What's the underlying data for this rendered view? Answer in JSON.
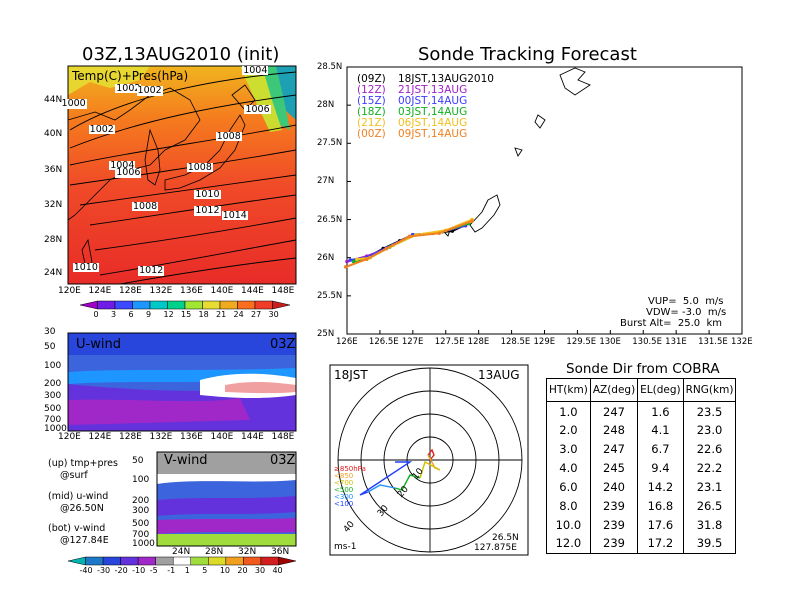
{
  "left_panel": {
    "title": "03Z,13AUG2010 (init)",
    "map_label": "Temp(C)+Pres(hPa)",
    "lat_labels": [
      "44N",
      "40N",
      "36N",
      "32N",
      "28N",
      "24N"
    ],
    "lon_labels": [
      "120E",
      "124E",
      "128E",
      "132E",
      "136E",
      "140E",
      "144E",
      "148E"
    ],
    "isobar_labels": [
      {
        "text": "1004",
        "lon": 144.5,
        "lat": 45.5
      },
      {
        "text": "1002",
        "lon": 127.8,
        "lat": 43.5
      },
      {
        "text": "1002",
        "lon": 130.6,
        "lat": 43.2
      },
      {
        "text": "1000",
        "lon": 120.6,
        "lat": 41.8
      },
      {
        "text": "1006",
        "lon": 144.8,
        "lat": 41.2
      },
      {
        "text": "1002",
        "lon": 124.3,
        "lat": 39.0
      },
      {
        "text": "1008",
        "lon": 141.0,
        "lat": 38.2
      },
      {
        "text": "1004",
        "lon": 127.0,
        "lat": 35.0
      },
      {
        "text": "1006",
        "lon": 127.8,
        "lat": 34.2
      },
      {
        "text": "1008",
        "lon": 137.2,
        "lat": 34.8
      },
      {
        "text": "1010",
        "lon": 138.2,
        "lat": 31.8
      },
      {
        "text": "1008",
        "lon": 130.0,
        "lat": 30.5
      },
      {
        "text": "1012",
        "lon": 138.2,
        "lat": 30.0
      },
      {
        "text": "1014",
        "lon": 141.8,
        "lat": 29.5
      },
      {
        "text": "1010",
        "lon": 122.2,
        "lat": 23.8
      },
      {
        "text": "1012",
        "lon": 130.8,
        "lat": 23.4
      }
    ],
    "temp_colorbar": {
      "labels": [
        "0",
        "3",
        "6",
        "9",
        "12",
        "15",
        "18",
        "21",
        "24",
        "27",
        "30"
      ],
      "colors": [
        "#a000c8",
        "#6e1ee6",
        "#3c4bff",
        "#1e96ff",
        "#00c8c8",
        "#00d28c",
        "#a0e632",
        "#e6dc32",
        "#f0aa1e",
        "#fa6e1e",
        "#f03c28",
        "#c81e1e"
      ]
    },
    "u_wind": {
      "label": "U-wind",
      "time": "03Z",
      "y_labels": [
        "30",
        "50",
        "100",
        "200",
        "300",
        "500",
        "700",
        "1000"
      ],
      "x_labels": [
        "120E",
        "124E",
        "128E",
        "132E",
        "136E",
        "140E",
        "144E",
        "148E"
      ]
    },
    "v_wind": {
      "label": "V-wind",
      "time": "03Z",
      "y_labels": [
        "50",
        "100",
        "200",
        "300",
        "500",
        "700",
        "1000"
      ],
      "x_labels": [
        "24N",
        "28N",
        "32N",
        "36N"
      ]
    },
    "legend_notes": [
      "(up) tmp+pres",
      "@surf",
      "(mid) u-wind",
      "@26.50N",
      "(bot) v-wind",
      "@127.84E"
    ],
    "wind_colorbar": {
      "labels": [
        "-40",
        "-30",
        "-20",
        "-10",
        "-5",
        "-1",
        "1",
        "5",
        "10",
        "20",
        "30",
        "40"
      ],
      "colors": [
        "#00b4b4",
        "#1e78c8",
        "#2846dc",
        "#6432dc",
        "#a028c8",
        "#a0a0a0",
        "#ffffff",
        "#a0dc3c",
        "#dcdc28",
        "#f0a01e",
        "#f05a1e",
        "#d21e1e",
        "#a00000"
      ]
    }
  },
  "tracking": {
    "title": "Sonde Tracking Forecast",
    "x_labels": [
      "126E",
      "126.5E",
      "127E",
      "127.5E",
      "128E",
      "128.5E",
      "129E",
      "129.5E",
      "130E",
      "130.5E",
      "131E",
      "131.5E",
      "132E"
    ],
    "y_labels": [
      "28.5N",
      "28N",
      "27.5N",
      "27N",
      "26.5N",
      "26N",
      "25.5N",
      "25N"
    ],
    "legend": [
      {
        "code": "(09Z)",
        "time": "18JST,13AUG2010",
        "color": "#000000"
      },
      {
        "code": "(12Z)",
        "time": "21JST,13AUG",
        "color": "#a020c8"
      },
      {
        "code": "(15Z)",
        "time": "00JST,14AUG",
        "color": "#3c3cff"
      },
      {
        "code": "(18Z)",
        "time": "03JST,14AUG",
        "color": "#10b020"
      },
      {
        "code": "(21Z)",
        "time": "06JST,14AUG",
        "color": "#f0c020"
      },
      {
        "code": "(00Z)",
        "time": "09JST,14AUG",
        "color": "#f08020"
      }
    ],
    "params": [
      "VUP=  5.0  m/s",
      "VDW= -3.0  m/s",
      "Burst Alt=  25.0  km"
    ]
  },
  "polar": {
    "time_left": "18JST",
    "date_right": "13AUG",
    "ring_labels": [
      "10",
      "20",
      "30",
      "40"
    ],
    "level_legend": [
      "≥850hPa",
      "<850",
      "<700",
      "<500",
      "<300",
      "<100"
    ],
    "level_colors": [
      "#e02020",
      "#f0a020",
      "#d0c000",
      "#10b020",
      "#1e90ff",
      "#2040ff"
    ],
    "unit": "ms-1",
    "loc_lat": "26.5N",
    "loc_lon": "127.875E"
  },
  "sonde_table": {
    "title": "Sonde Dir from COBRA",
    "headers": [
      "HT(km)",
      "AZ(deg)",
      "EL(deg)",
      "RNG(km)"
    ],
    "rows": [
      [
        "1.0",
        "247",
        "1.6",
        "23.5"
      ],
      [
        "2.0",
        "248",
        "4.1",
        "23.0"
      ],
      [
        "3.0",
        "247",
        "6.7",
        "22.6"
      ],
      [
        "4.0",
        "245",
        "9.4",
        "22.2"
      ],
      [
        "6.0",
        "240",
        "14.2",
        "23.1"
      ],
      [
        "8.0",
        "239",
        "16.8",
        "26.5"
      ],
      [
        "10.0",
        "239",
        "17.6",
        "31.8"
      ],
      [
        "12.0",
        "239",
        "17.2",
        "39.5"
      ]
    ]
  },
  "chart_data": [
    {
      "type": "line",
      "title": "Sonde Tracking Forecast",
      "xlim": [
        126,
        132
      ],
      "ylim": [
        25,
        28.5
      ],
      "series": [
        {
          "name": "18JST,13AUG2010",
          "color": "#000000",
          "points": [
            [
              127.85,
              26.45
            ],
            [
              127.6,
              26.35
            ],
            [
              127.3,
              26.32
            ],
            [
              127.0,
              26.3
            ],
            [
              126.8,
              26.22
            ],
            [
              126.55,
              26.12
            ],
            [
              126.3,
              26.0
            ]
          ]
        },
        {
          "name": "21JST,13AUG",
          "color": "#a020c8",
          "points": [
            [
              127.8,
              26.42
            ],
            [
              127.4,
              26.33
            ],
            [
              127.0,
              26.3
            ],
            [
              126.6,
              26.12
            ],
            [
              126.3,
              26.02
            ],
            [
              126.0,
              25.95
            ]
          ]
        },
        {
          "name": "00JST,14AUG",
          "color": "#3c3cff",
          "points": [
            [
              127.8,
              26.42
            ],
            [
              127.4,
              26.33
            ],
            [
              127.0,
              26.3
            ],
            [
              126.6,
              26.13
            ],
            [
              126.3,
              26.0
            ],
            [
              126.05,
              25.97
            ]
          ]
        },
        {
          "name": "03JST,14AUG",
          "color": "#10b020",
          "points": [
            [
              127.85,
              26.45
            ],
            [
              127.45,
              26.34
            ],
            [
              127.05,
              26.3
            ],
            [
              126.65,
              26.14
            ],
            [
              126.35,
              26.0
            ],
            [
              126.1,
              25.95
            ]
          ]
        },
        {
          "name": "06JST,14AUG",
          "color": "#f0c020",
          "points": [
            [
              127.9,
              26.5
            ],
            [
              127.5,
              26.36
            ],
            [
              127.05,
              26.3
            ],
            [
              126.7,
              26.16
            ],
            [
              126.35,
              26.0
            ],
            [
              126.15,
              25.98
            ]
          ]
        },
        {
          "name": "09JST,14AUG",
          "color": "#f08020",
          "points": [
            [
              127.9,
              26.48
            ],
            [
              127.4,
              26.32
            ],
            [
              126.95,
              26.28
            ],
            [
              126.6,
              26.12
            ],
            [
              126.3,
              25.98
            ],
            [
              125.98,
              25.88
            ]
          ]
        }
      ]
    },
    {
      "type": "table",
      "title": "Sonde Dir from COBRA",
      "columns": [
        "HT(km)",
        "AZ(deg)",
        "EL(deg)",
        "RNG(km)"
      ],
      "rows": [
        [
          1.0,
          247,
          1.6,
          23.5
        ],
        [
          2.0,
          248,
          4.1,
          23.0
        ],
        [
          3.0,
          247,
          6.7,
          22.6
        ],
        [
          4.0,
          245,
          9.4,
          22.2
        ],
        [
          6.0,
          240,
          14.2,
          23.1
        ],
        [
          8.0,
          239,
          16.8,
          26.5
        ],
        [
          10.0,
          239,
          17.6,
          31.8
        ],
        [
          12.0,
          239,
          17.2,
          39.5
        ]
      ]
    }
  ]
}
